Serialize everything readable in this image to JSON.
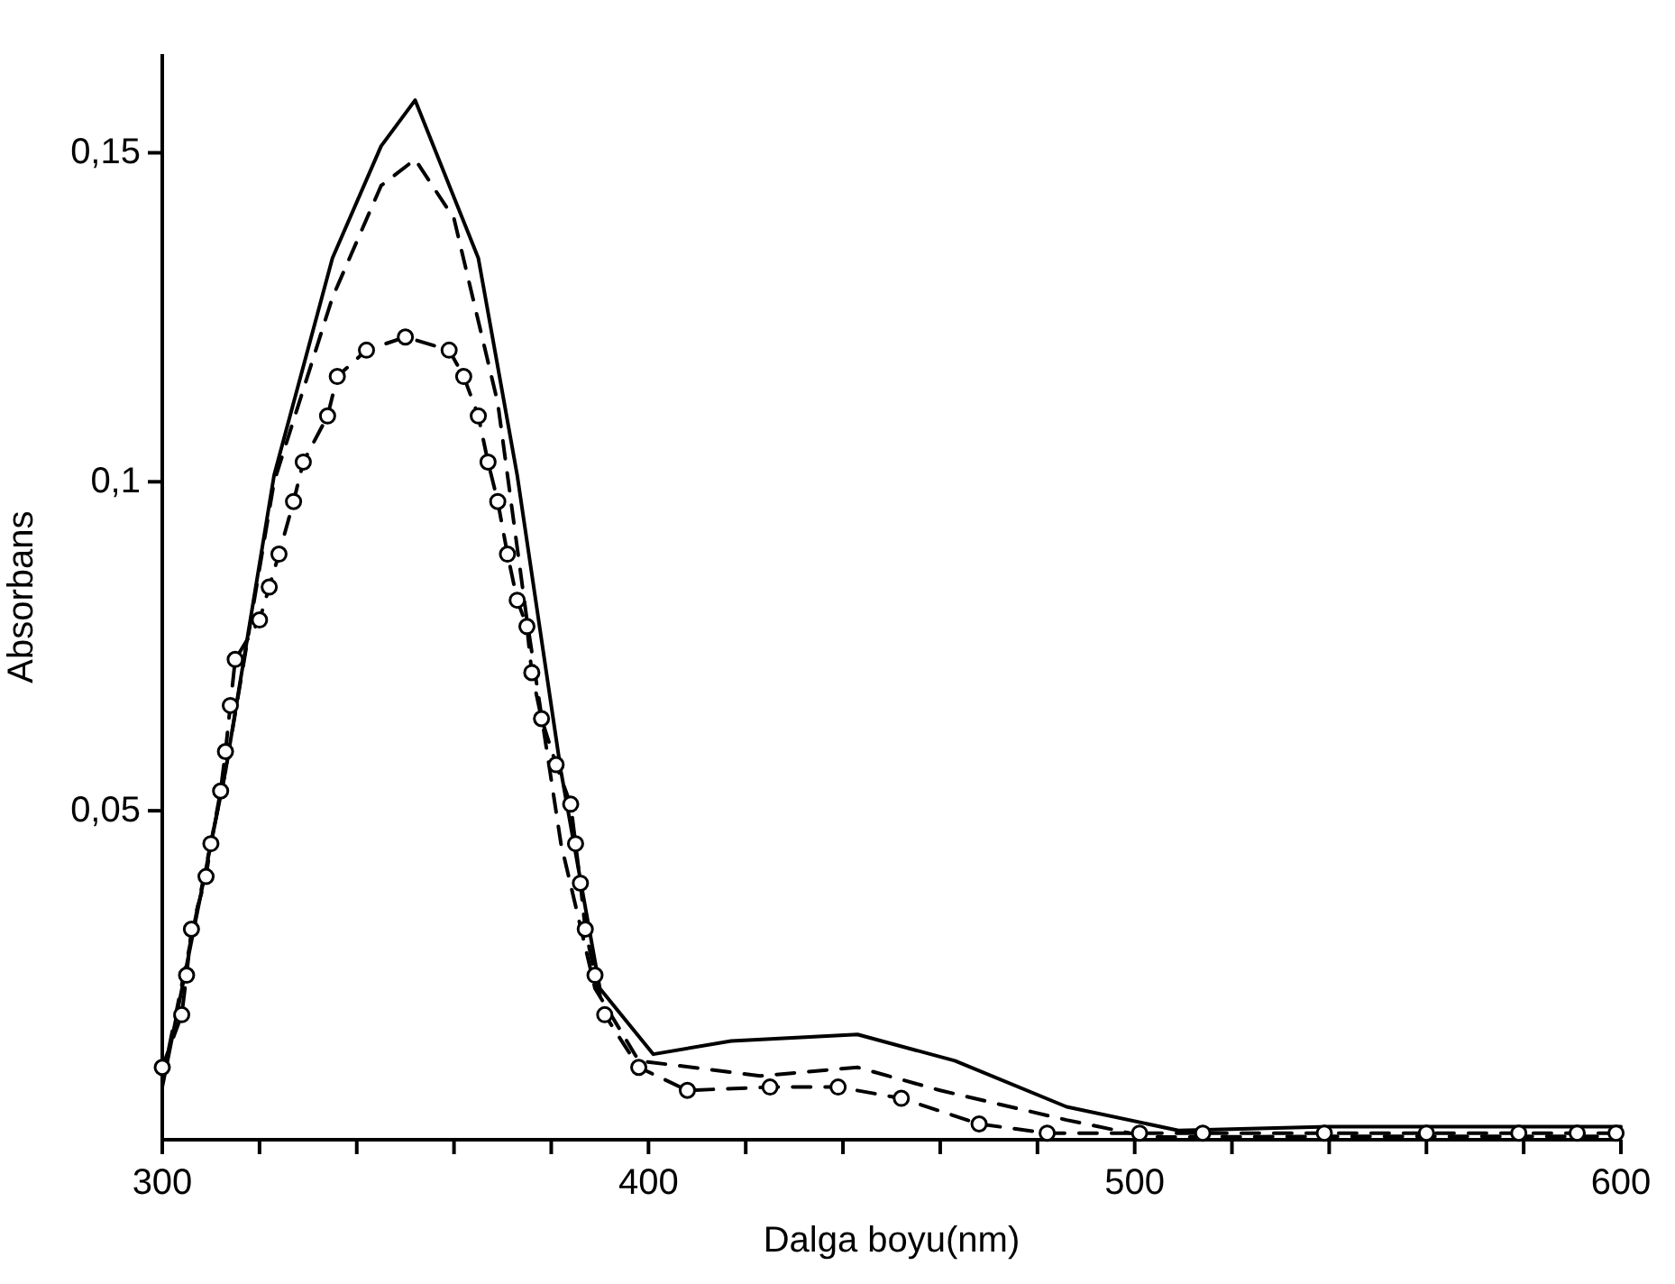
{
  "chart_data": {
    "type": "line",
    "xlabel": "Dalga boyu(nm)",
    "ylabel": "Absorbans",
    "xlim": [
      300,
      600
    ],
    "ylim": [
      0,
      0.165
    ],
    "xticks": [
      300,
      {
        "value": 320,
        "label": null
      },
      {
        "value": 340,
        "label": null
      },
      {
        "value": 360,
        "label": null
      },
      {
        "value": 380,
        "label": null
      },
      400,
      {
        "value": 420,
        "label": null
      },
      {
        "value": 440,
        "label": null
      },
      {
        "value": 460,
        "label": null
      },
      {
        "value": 480,
        "label": null
      },
      500,
      {
        "value": 520,
        "label": null
      },
      {
        "value": 540,
        "label": null
      },
      {
        "value": 560,
        "label": null
      },
      {
        "value": 580,
        "label": null
      },
      600
    ],
    "yticks": [
      {
        "value": 0.05,
        "label": "0,05"
      },
      {
        "value": 0.1,
        "label": "0,1"
      },
      {
        "value": 0.15,
        "label": "0,15"
      }
    ],
    "grid": false,
    "series": [
      {
        "color": "#000000",
        "line_style": "solid",
        "marker": "none",
        "x": [
          300,
          313,
          323,
          335,
          345,
          352,
          365,
          373,
          382,
          390,
          401,
          417,
          443,
          463,
          486,
          509,
          540,
          570,
          600
        ],
        "values": [
          0.008,
          0.056,
          0.101,
          0.134,
          0.151,
          0.158,
          0.134,
          0.101,
          0.056,
          0.023,
          0.013,
          0.015,
          0.016,
          0.012,
          0.005,
          0.0014,
          0.002,
          0.002,
          0.002
        ]
      },
      {
        "color": "#000000",
        "line_style": "dashed",
        "marker": "none",
        "x": [
          300,
          313,
          323,
          335,
          345,
          352,
          360,
          369,
          375,
          382,
          389,
          398,
          423,
          443,
          460,
          486,
          503,
          540,
          570,
          600
        ],
        "values": [
          0.009,
          0.056,
          0.1,
          0.128,
          0.145,
          0.149,
          0.14,
          0.112,
          0.079,
          0.045,
          0.023,
          0.012,
          0.0097,
          0.011,
          0.0075,
          0.003,
          0.0004,
          0.0005,
          0.0005,
          0.0005
        ]
      },
      {
        "color": "#000000",
        "line_style": "dashed",
        "marker": "circle",
        "x": [
          300,
          304,
          305,
          306,
          309,
          310,
          312,
          313,
          314,
          315,
          320,
          322,
          324,
          327,
          329,
          334,
          336,
          342,
          350,
          359,
          362,
          365,
          367,
          369,
          371,
          373,
          375,
          376,
          378,
          381,
          384,
          385,
          386,
          387,
          389,
          391,
          398,
          408,
          425,
          439,
          452,
          468,
          482,
          501,
          514,
          539,
          560,
          579,
          591,
          599
        ],
        "values": [
          0.011,
          0.019,
          0.025,
          0.032,
          0.04,
          0.045,
          0.053,
          0.059,
          0.066,
          0.073,
          0.079,
          0.084,
          0.089,
          0.097,
          0.103,
          0.11,
          0.116,
          0.12,
          0.122,
          0.12,
          0.116,
          0.11,
          0.103,
          0.097,
          0.089,
          0.082,
          0.078,
          0.071,
          0.064,
          0.057,
          0.051,
          0.045,
          0.039,
          0.032,
          0.025,
          0.019,
          0.011,
          0.0075,
          0.008,
          0.008,
          0.0063,
          0.0024,
          0.001,
          0.001,
          0.001,
          0.001,
          0.001,
          0.001,
          0.001,
          0.001
        ]
      }
    ]
  }
}
